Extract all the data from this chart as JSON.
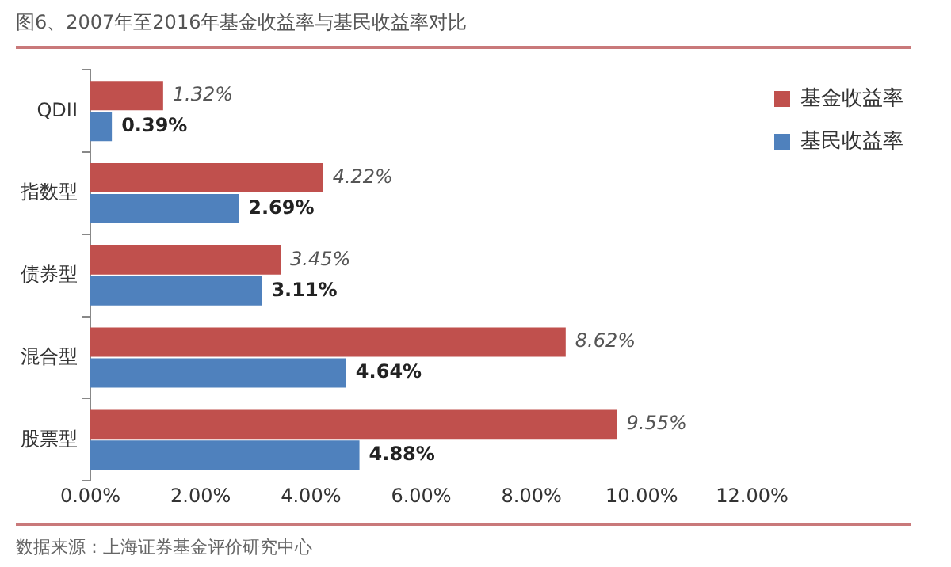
{
  "chart_data": {
    "type": "bar",
    "orientation": "horizontal",
    "title": "图6、2007年至2016年基金收益率与基民收益率对比",
    "categories": [
      "QDII",
      "指数型",
      "债券型",
      "混合型",
      "股票型"
    ],
    "series": [
      {
        "name": "基金收益率",
        "color": "#c0504d",
        "values": [
          1.32,
          4.22,
          3.45,
          8.62,
          9.55
        ],
        "value_labels": [
          "1.32%",
          "4.22%",
          "3.45%",
          "8.62%",
          "9.55%"
        ]
      },
      {
        "name": "基民收益率",
        "color": "#4f81bd",
        "values": [
          0.39,
          2.69,
          3.11,
          4.64,
          4.88
        ],
        "value_labels": [
          "0.39%",
          "2.69%",
          "3.11%",
          "4.64%",
          "4.88%"
        ]
      }
    ],
    "xlim": [
      0,
      12
    ],
    "xticks": [
      {
        "value": 0,
        "label": "0.00%"
      },
      {
        "value": 2,
        "label": "2.00%"
      },
      {
        "value": 4,
        "label": "4.00%"
      },
      {
        "value": 6,
        "label": "6.00%"
      },
      {
        "value": 8,
        "label": "8.00%"
      },
      {
        "value": 10,
        "label": "10.00%"
      },
      {
        "value": 12,
        "label": "12.00%"
      }
    ],
    "grid": false,
    "legend": "right",
    "annotations": [
      "数据来源：上海证券基金评价研究中心"
    ]
  }
}
